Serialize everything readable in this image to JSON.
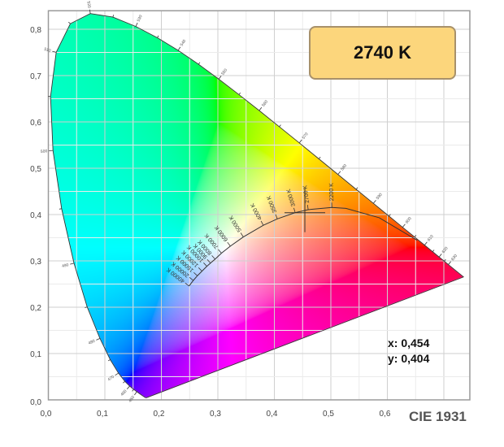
{
  "chart_data": {
    "type": "scatter",
    "title": "",
    "standard_label": "CIE 1931",
    "xlabel": "",
    "ylabel": "",
    "xlim": [
      0,
      0.746
    ],
    "ylim": [
      0,
      0.84
    ],
    "x_ticks": [
      "0,0",
      "0,1",
      "0,2",
      "0,3",
      "0,4",
      "0,5",
      "0,6"
    ],
    "y_ticks": [
      "0,0",
      "0,1",
      "0,2",
      "0,3",
      "0,4",
      "0,5",
      "0,6",
      "0,7",
      "0,8"
    ],
    "grid": true,
    "spectral_locus": [
      [
        380,
        0.1741,
        0.005
      ],
      [
        400,
        0.1733,
        0.0048
      ],
      [
        420,
        0.1714,
        0.0051
      ],
      [
        440,
        0.1644,
        0.0109
      ],
      [
        445,
        0.1611,
        0.0138
      ],
      [
        450,
        0.1566,
        0.0177
      ],
      [
        455,
        0.151,
        0.0227
      ],
      [
        460,
        0.144,
        0.0297
      ],
      [
        465,
        0.1355,
        0.0399
      ],
      [
        470,
        0.1241,
        0.0578
      ],
      [
        475,
        0.1096,
        0.0868
      ],
      [
        480,
        0.0913,
        0.1327
      ],
      [
        485,
        0.0687,
        0.2007
      ],
      [
        490,
        0.0454,
        0.295
      ],
      [
        495,
        0.0235,
        0.4127
      ],
      [
        500,
        0.0082,
        0.5384
      ],
      [
        505,
        0.0039,
        0.6548
      ],
      [
        510,
        0.0139,
        0.7502
      ],
      [
        515,
        0.0389,
        0.812
      ],
      [
        520,
        0.0743,
        0.8338
      ],
      [
        525,
        0.1142,
        0.8262
      ],
      [
        530,
        0.1547,
        0.8059
      ],
      [
        535,
        0.1929,
        0.7816
      ],
      [
        540,
        0.2296,
        0.7543
      ],
      [
        545,
        0.2658,
        0.7243
      ],
      [
        550,
        0.3016,
        0.6923
      ],
      [
        555,
        0.3373,
        0.6589
      ],
      [
        560,
        0.3731,
        0.6245
      ],
      [
        565,
        0.4087,
        0.5896
      ],
      [
        570,
        0.4441,
        0.5547
      ],
      [
        575,
        0.4788,
        0.5202
      ],
      [
        580,
        0.5125,
        0.4866
      ],
      [
        585,
        0.5448,
        0.4544
      ],
      [
        590,
        0.5752,
        0.4242
      ],
      [
        595,
        0.6029,
        0.3965
      ],
      [
        600,
        0.627,
        0.3725
      ],
      [
        605,
        0.6482,
        0.3514
      ],
      [
        610,
        0.6658,
        0.334
      ],
      [
        615,
        0.6801,
        0.3197
      ],
      [
        620,
        0.6915,
        0.3083
      ],
      [
        625,
        0.7006,
        0.2993
      ],
      [
        630,
        0.7079,
        0.292
      ],
      [
        640,
        0.719,
        0.2809
      ],
      [
        650,
        0.726,
        0.274
      ],
      [
        700,
        0.7347,
        0.2653
      ]
    ],
    "wavelength_labels": [
      450,
      460,
      470,
      480,
      490,
      500,
      510,
      520,
      530,
      540,
      550,
      560,
      570,
      580,
      590,
      600,
      610,
      620,
      630
    ],
    "planckian_locus": [
      {
        "label": "40000 K",
        "x": 0.249,
        "y": 0.2458
      },
      {
        "label": "20000 K",
        "x": 0.2565,
        "y": 0.2577
      },
      {
        "label": "15000 K",
        "x": 0.2637,
        "y": 0.2678
      },
      {
        "label": "12000 K",
        "x": 0.2719,
        "y": 0.2779
      },
      {
        "label": "10000 K",
        "x": 0.2806,
        "y": 0.2883
      },
      {
        "label": "9000 K",
        "x": 0.2869,
        "y": 0.2952
      },
      {
        "label": "8000 K",
        "x": 0.2951,
        "y": 0.3038
      },
      {
        "label": "7000 K",
        "x": 0.3064,
        "y": 0.3166
      },
      {
        "label": "6000 K",
        "x": 0.3221,
        "y": 0.3318
      },
      {
        "label": "5000 K",
        "x": 0.3451,
        "y": 0.3516
      },
      {
        "label": "4000 K",
        "x": 0.3805,
        "y": 0.3768
      },
      {
        "label": "3500 K",
        "x": 0.4053,
        "y": 0.3907
      },
      {
        "label": "3000 K",
        "x": 0.4369,
        "y": 0.4041
      },
      {
        "label": "2700 K",
        "x": 0.4599,
        "y": 0.4106
      },
      {
        "label": "2200 K",
        "x": 0.5018,
        "y": 0.4153
      },
      {
        "label": "",
        "x": 0.5267,
        "y": 0.4133
      },
      {
        "label": "",
        "x": 0.5857,
        "y": 0.3931
      },
      {
        "label": "",
        "x": 0.6528,
        "y": 0.3444
      }
    ],
    "measured_point": {
      "x": 0.454,
      "y": 0.404,
      "cct": "2740 K"
    }
  },
  "readout": {
    "cct": "2740 K",
    "x_text": "x: 0,454",
    "y_text": "y: 0,404"
  },
  "colors": {
    "box_fill": "#fcd67c",
    "box_border": "#a8916a",
    "grid_major": "#cfcfcf",
    "grid_minor": "#ebebeb",
    "frame": "#9a9a9a"
  }
}
